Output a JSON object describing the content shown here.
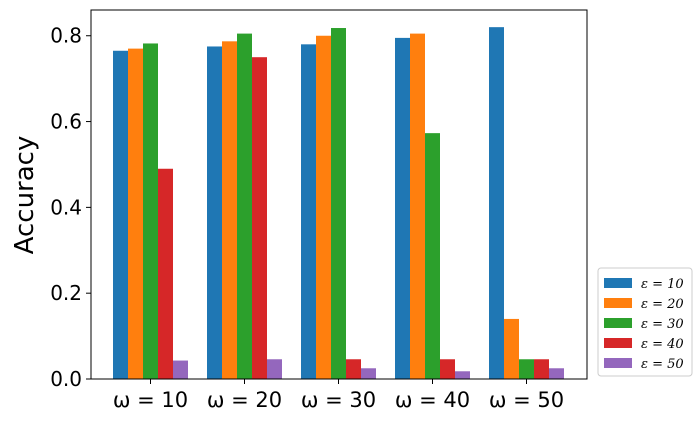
{
  "chart_data": {
    "type": "bar",
    "title": "",
    "xlabel": "",
    "ylabel": "Accuracy",
    "ylim": [
      0,
      0.86
    ],
    "yticks": [
      "0.0",
      "0.2",
      "0.4",
      "0.6",
      "0.8"
    ],
    "grid": false,
    "legend_position": "outside-right-bottom",
    "categories": [
      "ω = 10",
      "ω = 20",
      "ω = 30",
      "ω = 40",
      "ω = 50"
    ],
    "series": [
      {
        "name": "ε = 10",
        "color": "#1f77b4",
        "values": [
          0.765,
          0.775,
          0.78,
          0.795,
          0.82
        ]
      },
      {
        "name": "ε = 20",
        "color": "#ff7f0e",
        "values": [
          0.77,
          0.787,
          0.8,
          0.805,
          0.14
        ]
      },
      {
        "name": "ε = 30",
        "color": "#2ca02c",
        "values": [
          0.782,
          0.805,
          0.818,
          0.573,
          0.046
        ]
      },
      {
        "name": "ε = 40",
        "color": "#d62728",
        "values": [
          0.49,
          0.75,
          0.046,
          0.046,
          0.046
        ]
      },
      {
        "name": "ε = 50",
        "color": "#9467bd",
        "values": [
          0.043,
          0.046,
          0.025,
          0.018,
          0.025
        ]
      }
    ]
  }
}
